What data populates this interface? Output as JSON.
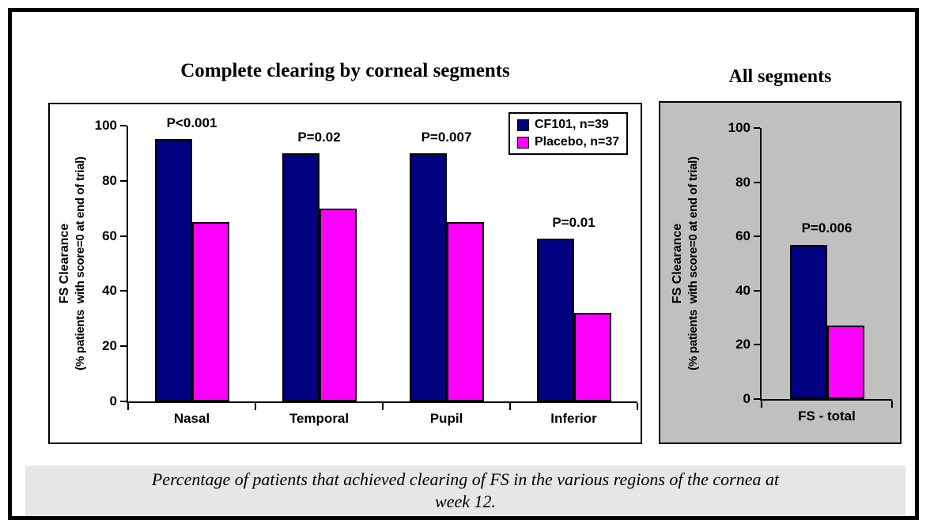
{
  "figure": {
    "main_title": "Complete clearing by corneal segments",
    "side_title": "All segments"
  },
  "caption": {
    "line1": "Percentage of patients that achieved clearing of FS in the various regions of the cornea at",
    "line2": "week 12."
  },
  "colors": {
    "cf101": "#000080",
    "placebo": "#FF00FF",
    "right_panel_background": "#C0C0C0",
    "caption_band_background": "#E6E6E6"
  },
  "chart_data": [
    {
      "type": "bar",
      "title": "Complete clearing by corneal segments",
      "categories": [
        "Nasal",
        "Temporal",
        "Pupil",
        "Inferior"
      ],
      "series": [
        {
          "name": "CF101, n=39",
          "color": "#000080",
          "values": [
            95,
            90,
            90,
            59
          ]
        },
        {
          "name": "Placebo, n=37",
          "color": "#FF00FF",
          "values": [
            65,
            70,
            65,
            32
          ]
        }
      ],
      "p_values": [
        "P<0.001",
        "P=0.02",
        "P=0.007",
        "P=0.01"
      ],
      "ylabel_line1": "FS Clearance",
      "ylabel_line2": "(% patients  with score=0 at end of trial)",
      "yticks": [
        0,
        20,
        40,
        60,
        80,
        100
      ],
      "ylim": [
        0,
        100
      ],
      "grid": false,
      "legend_position": "top-right",
      "show_legend": true,
      "background": "#FFFFFF"
    },
    {
      "type": "bar",
      "title": "All segments",
      "categories": [
        "FS - total"
      ],
      "series": [
        {
          "name": "CF101, n=39",
          "color": "#000080",
          "values": [
            57
          ]
        },
        {
          "name": "Placebo, n=37",
          "color": "#FF00FF",
          "values": [
            27
          ]
        }
      ],
      "p_values": [
        "P=0.006"
      ],
      "ylabel_line1": "FS Clearance",
      "ylabel_line2": "(% patients  with score=0 at end of trial)",
      "yticks": [
        0,
        20,
        40,
        60,
        80,
        100
      ],
      "ylim": [
        0,
        100
      ],
      "grid": false,
      "show_legend": false,
      "background": "#C0C0C0"
    }
  ]
}
